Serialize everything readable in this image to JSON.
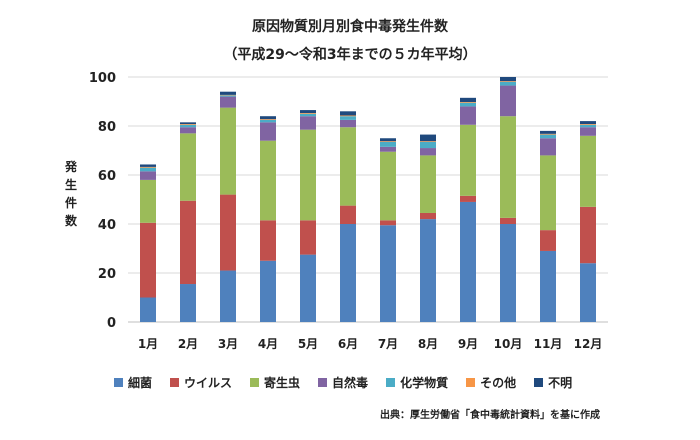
{
  "chart_data": {
    "type": "stacked-bar",
    "title": "原因物質別月別食中毒発生件数",
    "subtitle": "（平成29～令和3年までの５カ年平均）",
    "ylabel": [
      "発",
      "生",
      "件",
      "数"
    ],
    "ylim": [
      0,
      100
    ],
    "yticks": [
      0,
      20,
      40,
      60,
      80,
      100
    ],
    "categories": [
      "1月",
      "2月",
      "3月",
      "4月",
      "5月",
      "6月",
      "7月",
      "8月",
      "9月",
      "10月",
      "11月",
      "12月"
    ],
    "series": [
      {
        "name": "細菌",
        "color": "#4f81bd",
        "values": [
          10,
          15.5,
          21,
          25,
          27.5,
          40,
          39.5,
          42,
          49,
          40,
          29,
          24
        ]
      },
      {
        "name": "ウイルス",
        "color": "#c0504d",
        "values": [
          30.5,
          34,
          31,
          16.5,
          14,
          7.5,
          2,
          2.5,
          2.5,
          2.5,
          8.5,
          23
        ]
      },
      {
        "name": "寄生虫",
        "color": "#9bbb59",
        "values": [
          17.5,
          27.5,
          35.5,
          32.5,
          37,
          32,
          28,
          23.5,
          29,
          41.5,
          30.5,
          29
        ]
      },
      {
        "name": "自然毒",
        "color": "#8064a2",
        "values": [
          3.5,
          2.5,
          4.5,
          7.5,
          5.5,
          3,
          2,
          3,
          7.5,
          12.5,
          7,
          3.5
        ]
      },
      {
        "name": "化学物質",
        "color": "#4bacc6",
        "values": [
          1.5,
          1,
          0.5,
          1,
          1,
          1.5,
          2,
          2.5,
          1.5,
          1.5,
          1.5,
          1
        ]
      },
      {
        "name": "その他",
        "color": "#f79646",
        "values": [
          0.3,
          0.3,
          0.2,
          0.3,
          0.3,
          0.3,
          0.3,
          0.3,
          0.3,
          0.3,
          0.3,
          0.3
        ]
      },
      {
        "name": "不明",
        "color": "#1f497d",
        "values": [
          1,
          0.7,
          1.3,
          1.2,
          1.2,
          1.7,
          1.2,
          2.7,
          1.7,
          1.7,
          1.2,
          1.2
        ]
      }
    ],
    "grid": true,
    "legend_position": "bottom"
  },
  "source": "出典：厚生労働省「食中毒統計資料」を基に作成"
}
